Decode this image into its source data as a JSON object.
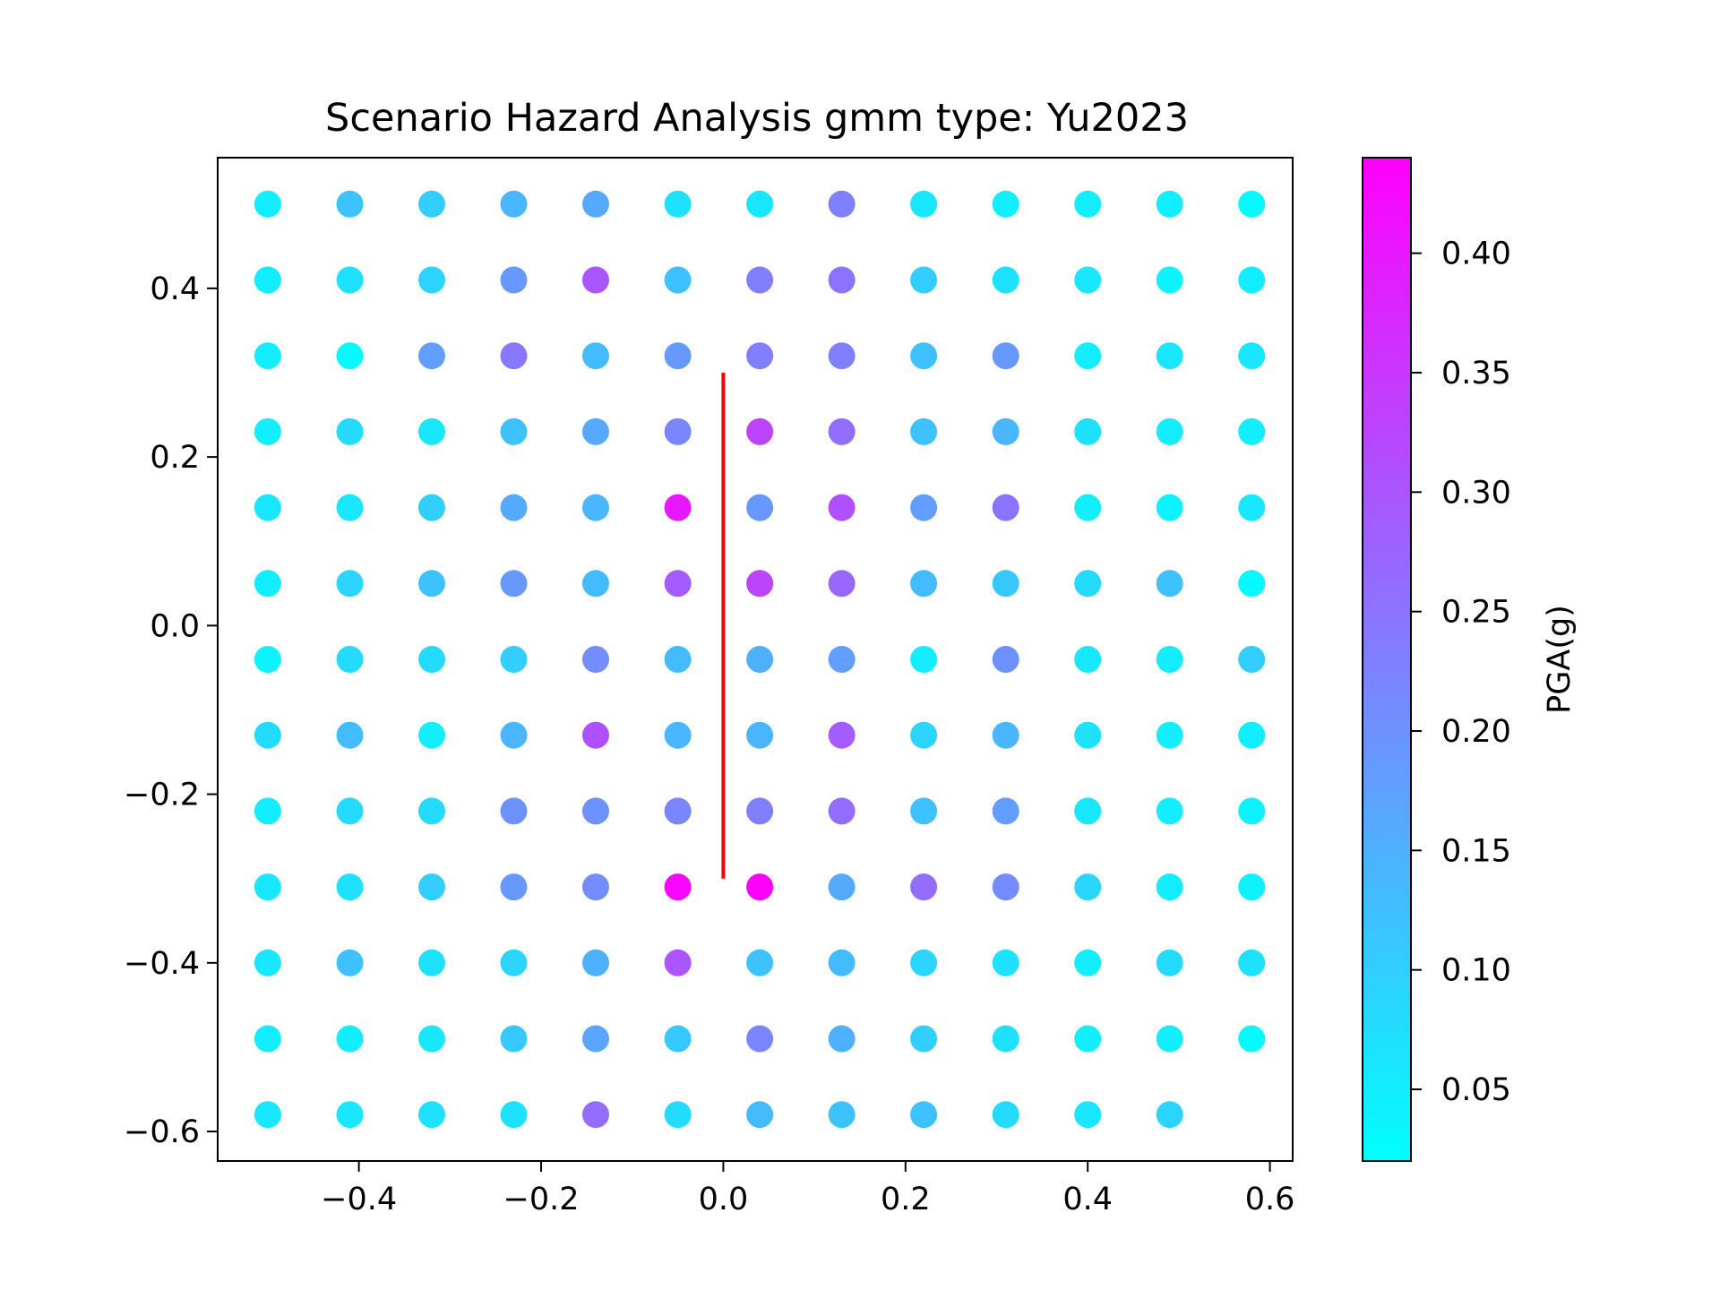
{
  "chart_data": {
    "type": "scatter",
    "title": "Scenario Hazard Analysis gmm type: Yu2023",
    "xlabel": "",
    "ylabel": "",
    "xlim": [
      -0.555,
      0.625
    ],
    "ylim": [
      -0.635,
      0.555
    ],
    "x_ticks": [
      -0.4,
      -0.2,
      0.0,
      0.2,
      0.4,
      0.6
    ],
    "x_tick_labels": [
      "−0.4",
      "−0.2",
      "0.0",
      "0.2",
      "0.4",
      "0.6"
    ],
    "y_ticks": [
      -0.6,
      -0.4,
      -0.2,
      0.0,
      0.2,
      0.4
    ],
    "y_tick_labels": [
      "−0.6",
      "−0.4",
      "−0.2",
      "0.0",
      "0.2",
      "0.4"
    ],
    "grid": false,
    "colormap": "cool",
    "colorbar": {
      "label": "PGA(g)",
      "range": [
        0.02,
        0.44
      ],
      "ticks": [
        0.05,
        0.1,
        0.15,
        0.2,
        0.25,
        0.3,
        0.35,
        0.4
      ],
      "tick_labels": [
        "0.05",
        "0.10",
        "0.15",
        "0.20",
        "0.25",
        "0.30",
        "0.35",
        "0.40"
      ]
    },
    "x_grid": [
      -0.5,
      -0.41,
      -0.32,
      -0.23,
      -0.14,
      -0.05,
      0.04,
      0.13,
      0.22,
      0.31,
      0.4,
      0.49,
      0.58
    ],
    "y_grid": [
      0.5,
      0.41,
      0.32,
      0.23,
      0.14,
      0.05,
      -0.04,
      -0.13,
      -0.22,
      -0.31,
      -0.4,
      -0.49,
      -0.58
    ],
    "pga_rows": [
      [
        0.05,
        0.12,
        0.1,
        0.14,
        0.16,
        0.07,
        0.06,
        0.23,
        0.06,
        0.05,
        0.05,
        0.05,
        0.03
      ],
      [
        0.05,
        0.07,
        0.09,
        0.19,
        0.3,
        0.12,
        0.23,
        0.25,
        0.1,
        0.07,
        0.06,
        0.04,
        0.05
      ],
      [
        0.05,
        0.03,
        0.18,
        0.24,
        0.13,
        0.19,
        0.23,
        0.23,
        0.12,
        0.19,
        0.05,
        0.06,
        0.06
      ],
      [
        0.05,
        0.08,
        0.06,
        0.12,
        0.16,
        0.22,
        0.33,
        0.26,
        0.12,
        0.14,
        0.07,
        0.05,
        0.05
      ],
      [
        0.06,
        0.06,
        0.1,
        0.16,
        0.14,
        0.4,
        0.19,
        0.31,
        0.18,
        0.25,
        0.05,
        0.04,
        0.06
      ],
      [
        0.05,
        0.09,
        0.12,
        0.19,
        0.13,
        0.29,
        0.33,
        0.27,
        0.13,
        0.11,
        0.08,
        0.12,
        0.03
      ],
      [
        0.04,
        0.08,
        0.08,
        0.1,
        0.21,
        0.13,
        0.15,
        0.18,
        0.05,
        0.2,
        0.06,
        0.05,
        0.1
      ],
      [
        0.08,
        0.13,
        0.05,
        0.14,
        0.31,
        0.14,
        0.14,
        0.29,
        0.09,
        0.14,
        0.07,
        0.05,
        0.05
      ],
      [
        0.05,
        0.08,
        0.08,
        0.2,
        0.2,
        0.22,
        0.23,
        0.26,
        0.12,
        0.18,
        0.06,
        0.05,
        0.04
      ],
      [
        0.06,
        0.07,
        0.1,
        0.19,
        0.21,
        0.43,
        0.44,
        0.16,
        0.26,
        0.21,
        0.09,
        0.05,
        0.04
      ],
      [
        0.06,
        0.12,
        0.07,
        0.09,
        0.15,
        0.3,
        0.12,
        0.13,
        0.09,
        0.07,
        0.05,
        0.08,
        0.07
      ],
      [
        0.05,
        0.05,
        0.06,
        0.11,
        0.17,
        0.11,
        0.22,
        0.15,
        0.1,
        0.07,
        0.05,
        0.05,
        0.03
      ],
      [
        0.06,
        0.06,
        0.07,
        0.07,
        0.26,
        0.08,
        0.13,
        0.12,
        0.12,
        0.08,
        0.06,
        0.09,
        null
      ]
    ],
    "fault_line": {
      "color": "#ff0000",
      "points": [
        [
          0.0,
          0.3
        ],
        [
          0.0,
          -0.3
        ]
      ]
    },
    "marker_color_missing": "none"
  }
}
